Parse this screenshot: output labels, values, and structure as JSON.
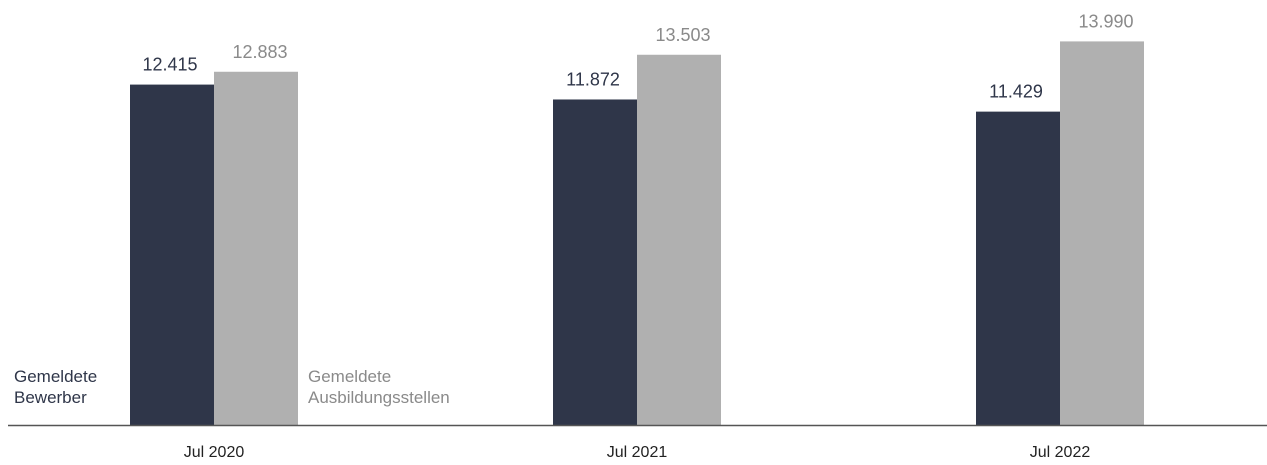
{
  "colors": {
    "bewerber": "#2f3649",
    "stellen": "#b0b0b0",
    "bewerber_text": "#2f3649",
    "stellen_text": "#8a8a8a",
    "axis": "#555555",
    "tick_text": "#222222"
  },
  "chart_data": {
    "type": "bar",
    "categories": [
      "Jul 2020",
      "Jul 2021",
      "Jul 2022"
    ],
    "series": [
      {
        "name": "Gemeldete Bewerber",
        "name_lines": [
          "Gemeldete",
          "Bewerber"
        ],
        "values": [
          12415,
          11872,
          11429
        ],
        "value_labels": [
          "12.415",
          "11.872",
          "11.429"
        ]
      },
      {
        "name": "Gemeldete Ausbildungsstellen",
        "name_lines": [
          "Gemeldete",
          "Ausbildungsstellen"
        ],
        "values": [
          12883,
          13503,
          13990
        ],
        "value_labels": [
          "12.883",
          "13.503",
          "13.990"
        ]
      }
    ],
    "ylim": [
      0,
      15500
    ],
    "grid": false,
    "legend": "inline-bottom"
  }
}
